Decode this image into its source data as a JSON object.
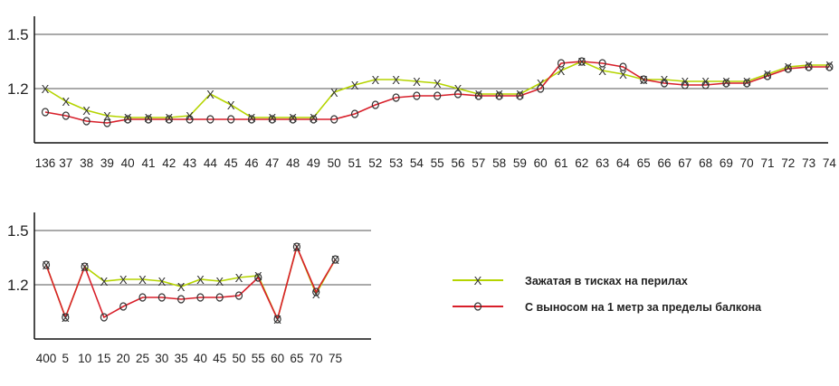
{
  "chart_data": [
    {
      "type": "line",
      "categories": [
        "136",
        "37",
        "38",
        "39",
        "40",
        "41",
        "42",
        "43",
        "44",
        "45",
        "46",
        "47",
        "48",
        "49",
        "50",
        "51",
        "52",
        "53",
        "54",
        "55",
        "56",
        "57",
        "58",
        "59",
        "60",
        "61",
        "62",
        "63",
        "64",
        "65",
        "66",
        "67",
        "68",
        "69",
        "70",
        "71",
        "72",
        "73",
        "74"
      ],
      "ytick_labels": [
        "1.5",
        "1.2"
      ],
      "ylim": [
        1.0,
        1.5
      ],
      "series": [
        {
          "name": "Зажатая в тисках на перилах",
          "marker": "x",
          "color": "#b5d400",
          "values": [
            1.2,
            1.13,
            1.08,
            1.05,
            1.04,
            1.04,
            1.04,
            1.05,
            1.17,
            1.11,
            1.04,
            1.04,
            1.04,
            1.04,
            1.18,
            1.22,
            1.25,
            1.25,
            1.24,
            1.23,
            1.2,
            1.17,
            1.17,
            1.17,
            1.23,
            1.3,
            1.35,
            1.3,
            1.28,
            1.25,
            1.25,
            1.24,
            1.24,
            1.24,
            1.24,
            1.28,
            1.32,
            1.33,
            1.33
          ]
        },
        {
          "name": "С выносом на 1 метр за пределы балкона",
          "marker": "o",
          "color": "#d81f2a",
          "values": [
            1.07,
            1.05,
            1.02,
            1.01,
            1.03,
            1.03,
            1.03,
            1.03,
            1.03,
            1.03,
            1.03,
            1.03,
            1.03,
            1.03,
            1.03,
            1.06,
            1.11,
            1.15,
            1.16,
            1.16,
            1.17,
            1.16,
            1.16,
            1.16,
            1.2,
            1.34,
            1.35,
            1.34,
            1.32,
            1.25,
            1.23,
            1.22,
            1.22,
            1.23,
            1.23,
            1.27,
            1.31,
            1.32,
            1.32
          ]
        }
      ]
    },
    {
      "type": "line",
      "categories": [
        "400",
        "5",
        "10",
        "15",
        "20",
        "25",
        "30",
        "35",
        "40",
        "45",
        "50",
        "55",
        "60",
        "65",
        "70",
        "75"
      ],
      "ytick_labels": [
        "1.5",
        "1.2"
      ],
      "ylim": [
        1.0,
        1.5
      ],
      "series": [
        {
          "name": "Зажатая в тисках на перилах",
          "marker": "x",
          "color": "#b5d400",
          "values": [
            1.31,
            1.02,
            1.3,
            1.22,
            1.23,
            1.23,
            1.22,
            1.19,
            1.23,
            1.22,
            1.24,
            1.25,
            1.01,
            1.41,
            1.15,
            1.34
          ]
        },
        {
          "name": "С выносом на 1 метр за пределы балкона",
          "marker": "o",
          "color": "#d81f2a",
          "values": [
            1.31,
            1.02,
            1.3,
            1.02,
            1.08,
            1.13,
            1.13,
            1.12,
            1.13,
            1.13,
            1.14,
            1.24,
            1.01,
            1.41,
            1.16,
            1.34
          ]
        }
      ]
    }
  ],
  "legend": [
    {
      "label": "Зажатая в тисках на перилах",
      "marker": "x",
      "color": "#b5d400"
    },
    {
      "label": "С выносом на 1 метр за пределы балкона",
      "marker": "o",
      "color": "#d81f2a"
    }
  ]
}
